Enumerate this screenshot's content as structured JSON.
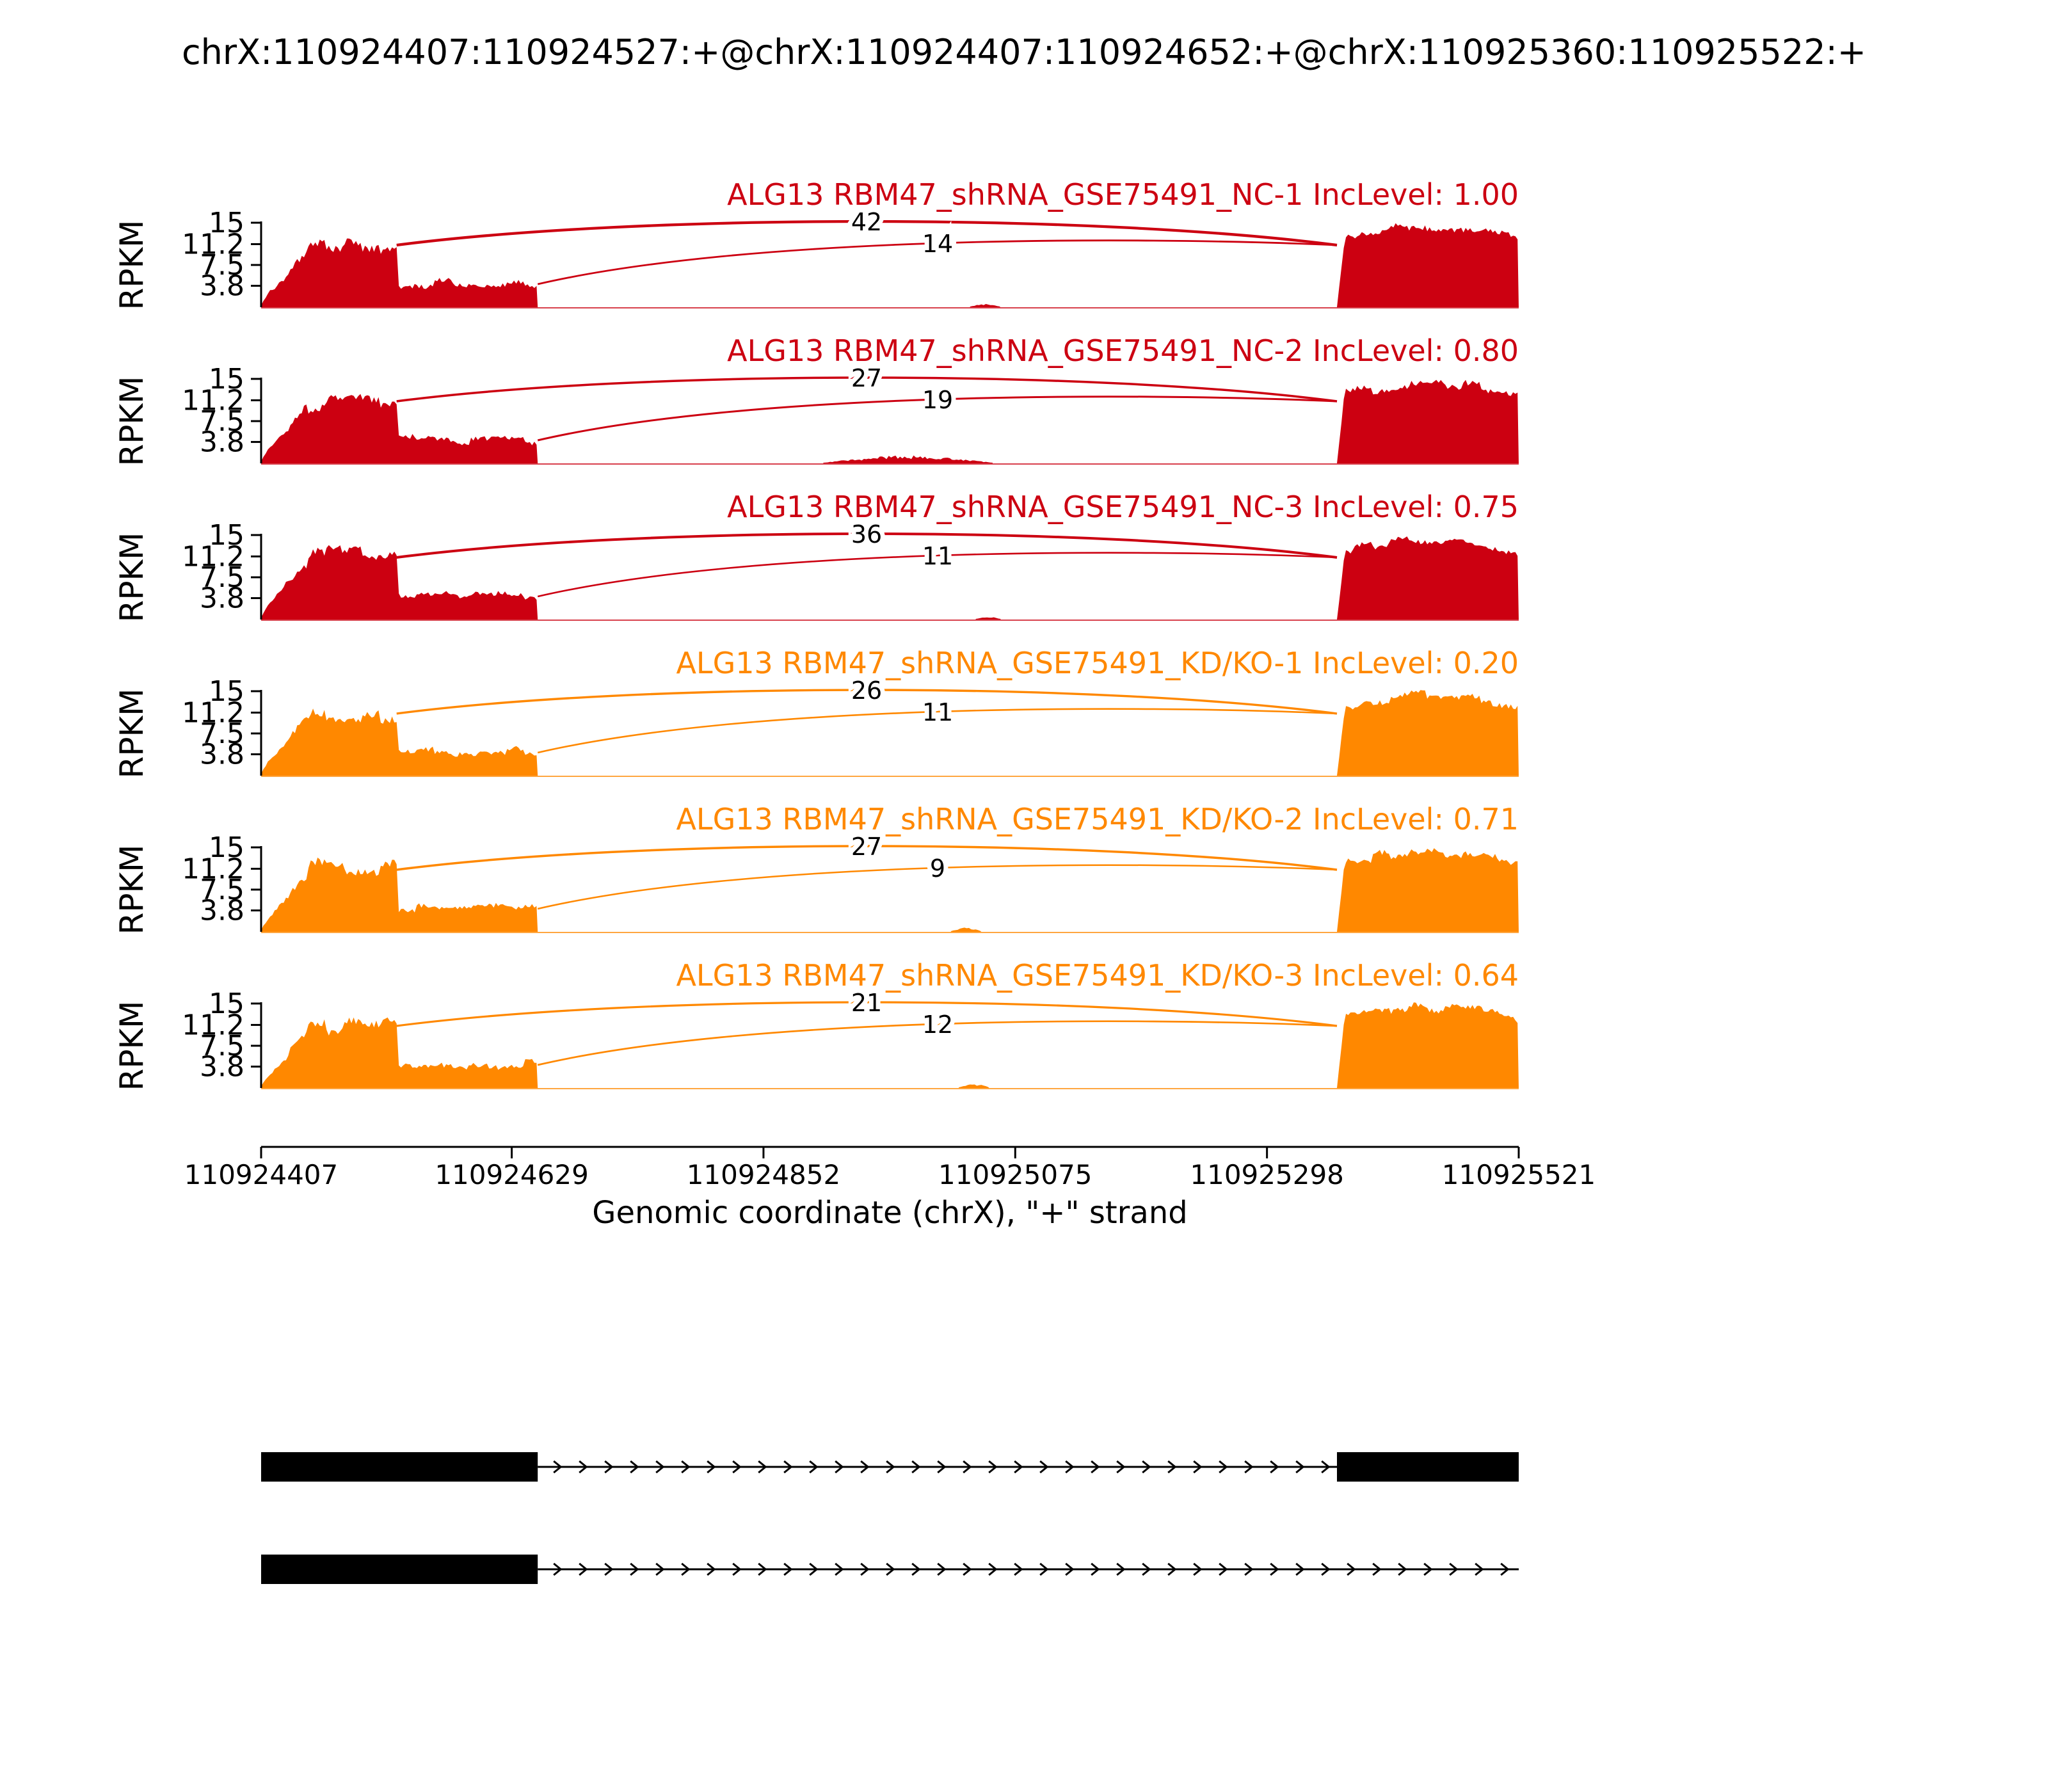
{
  "title": "chrX:110924407:110924527:+@chrX:110924407:110924652:+@chrX:110925360:110925522:+",
  "colors": {
    "nc": "#CC0011",
    "kd": "#FF8800"
  },
  "chart_data": {
    "type": "area",
    "subtype": "sashimi-coverage-plot",
    "xlabel": "Genomic coordinate (chrX), \"+\" strand",
    "ylabel": "RPKM",
    "y_ticks": [
      "15",
      "11.2",
      "7.5",
      "3.8"
    ],
    "y_max": 15,
    "x_domain_bp": [
      110924407,
      110925521
    ],
    "x_ticks": [
      110924407,
      110924629,
      110924852,
      110925075,
      110925298,
      110925521
    ],
    "exon_short_end": 110924527,
    "exon_long_end": 110924652,
    "downstream_exon": [
      110925360,
      110925521
    ],
    "junctions_bp": [
      [
        110924527,
        110925360
      ],
      [
        110924652,
        110925360
      ]
    ],
    "tracks": [
      {
        "name": "NC-1",
        "group": "nc",
        "title": "ALG13 RBM47_shRNA_GSE75491_NC-1 IncLevel: 1.00",
        "inc_level": "1.00",
        "counts": [
          42,
          14
        ],
        "bumps": [
          {
            "s": 110925035,
            "e": 110925062,
            "h": 0.35
          }
        ]
      },
      {
        "name": "NC-2",
        "group": "nc",
        "title": "ALG13 RBM47_shRNA_GSE75491_NC-2 IncLevel: 0.80",
        "inc_level": "0.80",
        "counts": [
          27,
          19
        ],
        "bumps": [
          {
            "s": 110924905,
            "e": 110925055,
            "h": 1.0
          }
        ]
      },
      {
        "name": "NC-3",
        "group": "nc",
        "title": "ALG13 RBM47_shRNA_GSE75491_NC-3 IncLevel: 0.75",
        "inc_level": "0.75",
        "counts": [
          36,
          11
        ],
        "bumps": [
          {
            "s": 110925040,
            "e": 110925062,
            "h": 0.3
          }
        ]
      },
      {
        "name": "KD-KO-1",
        "group": "kd",
        "title": "ALG13 RBM47_shRNA_GSE75491_KD/KO-1 IncLevel: 0.20",
        "inc_level": "0.20",
        "counts": [
          26,
          11
        ],
        "bumps": []
      },
      {
        "name": "KD-KO-2",
        "group": "kd",
        "title": "ALG13 RBM47_shRNA_GSE75491_KD/KO-2 IncLevel: 0.71",
        "inc_level": "0.71",
        "counts": [
          27,
          9
        ],
        "bumps": [
          {
            "s": 110925018,
            "e": 110925045,
            "h": 0.5
          }
        ]
      },
      {
        "name": "KD-KO-3",
        "group": "kd",
        "title": "ALG13 RBM47_shRNA_GSE75491_KD/KO-3 IncLevel: 0.64",
        "inc_level": "0.64",
        "counts": [
          21,
          12
        ],
        "bumps": [
          {
            "s": 110925025,
            "e": 110925052,
            "h": 0.5
          }
        ]
      }
    ],
    "isoforms": [
      {
        "exons_bp": [
          [
            110924407,
            110924652
          ],
          [
            110925360,
            110925521
          ]
        ],
        "arrow_span_bp": [
          110924652,
          110925360
        ]
      },
      {
        "exons_bp": [
          [
            110924407,
            110924652
          ]
        ],
        "arrow_span_bp": [
          110924652,
          110925521
        ]
      }
    ]
  }
}
